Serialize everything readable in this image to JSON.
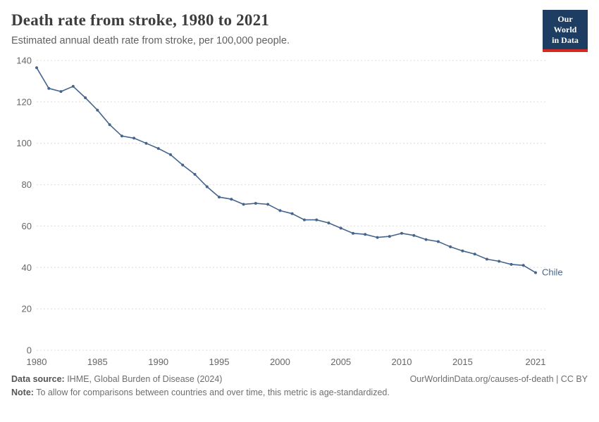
{
  "logo": {
    "line1": "Our World",
    "line2": "in Data"
  },
  "header": {
    "title": "Death rate from stroke, 1980 to 2021",
    "subtitle": "Estimated annual death rate from stroke, per 100,000 people."
  },
  "chart_data": {
    "type": "line",
    "title": "Death rate from stroke, 1980 to 2021",
    "subtitle": "Estimated annual death rate from stroke, per 100,000 people.",
    "xlabel": "",
    "ylabel": "",
    "xlim": [
      1980,
      2021
    ],
    "ylim": [
      0,
      140
    ],
    "yticks": [
      0,
      20,
      40,
      60,
      80,
      100,
      120,
      140
    ],
    "xticks": [
      1980,
      1985,
      1990,
      1995,
      2000,
      2005,
      2010,
      2015,
      2021
    ],
    "grid": "horizontal-dashed",
    "legend_position": "end-of-line",
    "series": [
      {
        "name": "Chile",
        "color": "#46658c",
        "x": [
          1980,
          1981,
          1982,
          1983,
          1984,
          1985,
          1986,
          1987,
          1988,
          1989,
          1990,
          1991,
          1992,
          1993,
          1994,
          1995,
          1996,
          1997,
          1998,
          1999,
          2000,
          2001,
          2002,
          2003,
          2004,
          2005,
          2006,
          2007,
          2008,
          2009,
          2010,
          2011,
          2012,
          2013,
          2014,
          2015,
          2016,
          2017,
          2018,
          2019,
          2020,
          2021
        ],
        "values": [
          136.5,
          126.5,
          125,
          127.5,
          122,
          116,
          109,
          103.5,
          102.5,
          100,
          97.5,
          94.5,
          89.5,
          85,
          79,
          74,
          73,
          70.5,
          71,
          70.5,
          67.5,
          66,
          63,
          63,
          61.5,
          59,
          56.5,
          56,
          54.5,
          55,
          56.5,
          55.5,
          53.5,
          52.5,
          50,
          48,
          46.5,
          44,
          43,
          41.5,
          41,
          37.5
        ]
      }
    ]
  },
  "footer": {
    "source_label": "Data source:",
    "source_text": " IHME, Global Burden of Disease (2024)",
    "link": "OurWorldinData.org/causes-of-death | CC BY",
    "note_label": "Note:",
    "note_text": " To allow for comparisons between countries and over time, this metric is age-standardized."
  }
}
